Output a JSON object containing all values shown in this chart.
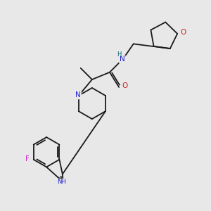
{
  "bg_color": "#e8e8e8",
  "atom_colors": {
    "C": "#1a1a1a",
    "N": "#2020cc",
    "O": "#cc2020",
    "F": "#cc20cc",
    "NH": "#006666"
  },
  "bond_color": "#1a1a1a",
  "bond_width": 1.3,
  "figsize": [
    3.0,
    3.0
  ],
  "dpi": 100,
  "xlim": [
    0,
    10
  ],
  "ylim": [
    0,
    10
  ]
}
